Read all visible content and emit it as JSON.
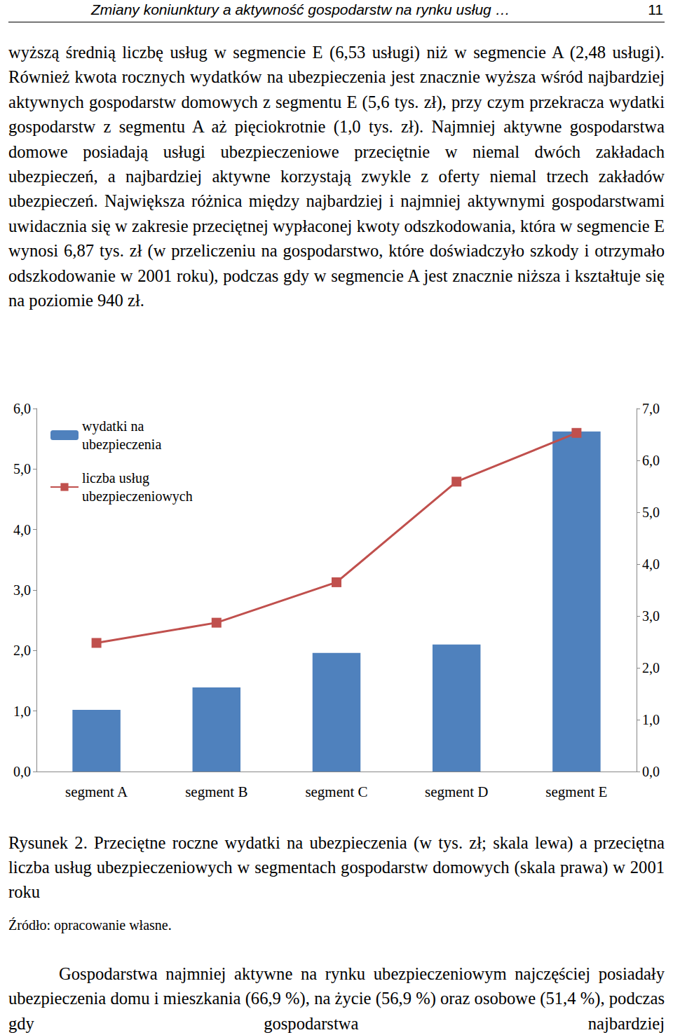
{
  "header": {
    "title": "Zmiany koniunktury a aktywność gospodarstw na rynku usług …",
    "page": "11"
  },
  "text_before": "wyższą średnią liczbę usług w segmencie E (6,53 usługi) niż w segmencie A (2,48 usługi). Również kwota rocznych wydatków na ubezpieczenia jest znacznie wyższa wśród najbardziej aktywnych gospodarstw domowych z segmentu E (5,6 tys. zł), przy czym przekracza wydatki gospodarstw z segmentu A aż pięciokrotnie (1,0 tys. zł). Najmniej aktywne gospodarstwa domowe posiadają usługi ubezpieczeniowe przeciętnie w niemal dwóch zakładach ubezpieczeń, a najbardziej aktywne korzystają zwykle z oferty niemal trzech zakładów ubezpieczeń. Największa różnica między najbardziej i najmniej aktywnymi gospodarstwami uwidacznia się w zakresie przeciętnej wypłaconej kwoty odszkodowania, która w segmencie E wynosi 6,87 tys. zł (w przeliczeniu na gospodarstwo, które doświadczyło szkody i otrzymało odszkodowanie w 2001 roku), podczas gdy w segmencie A jest znacznie niższa i kształtuje się na poziomie 940 zł.",
  "chart_data": {
    "type": "bar",
    "categories": [
      "segment A",
      "segment B",
      "segment C",
      "segment D",
      "segment E"
    ],
    "series": [
      {
        "name": "wydatki na\nubezpieczenia",
        "type": "bar",
        "color": "#4f81bd",
        "values": [
          1.02,
          1.39,
          1.96,
          2.1,
          5.62
        ]
      },
      {
        "name": "liczba usług\nubezpieczeniowych",
        "type": "line",
        "axis": "y2",
        "color": "#c0504d",
        "marker": "square",
        "line_style": "solid",
        "values": [
          2.48,
          2.87,
          3.65,
          5.59,
          6.53
        ]
      }
    ],
    "ylim": [
      0,
      6
    ],
    "yticks": [
      {
        "value": 0,
        "label": "0,0"
      },
      {
        "value": 1,
        "label": "1,0"
      },
      {
        "value": 2,
        "label": "2,0"
      },
      {
        "value": 3,
        "label": "3,0"
      },
      {
        "value": 4,
        "label": "4,0"
      },
      {
        "value": 5,
        "label": "5,0"
      },
      {
        "value": 6,
        "label": "6,0"
      }
    ],
    "y2lim": [
      0,
      7
    ],
    "y2ticks": [
      {
        "value": 0,
        "label": "0,0"
      },
      {
        "value": 1,
        "label": "1,0"
      },
      {
        "value": 2,
        "label": "2,0"
      },
      {
        "value": 3,
        "label": "3,0"
      },
      {
        "value": 4,
        "label": "4,0"
      },
      {
        "value": 5,
        "label": "5,0"
      },
      {
        "value": 6,
        "label": "6,0"
      },
      {
        "value": 7,
        "label": "7,0"
      }
    ],
    "legend": "top-left",
    "grid": false
  },
  "caption": "Rysunek 2. Przeciętne roczne wydatki na ubezpieczenia (w tys. zł; skala lewa) a przeciętna liczba usług ubezpieczeniowych w segmentach gospodarstw domowych (skala prawa) w 2001 roku",
  "source": "Źródło: opracowanie własne.",
  "text_after": "Gospodarstwa najmniej aktywne na rynku ubezpieczeniowym najczęściej posiadały ubezpieczenia domu i mieszkania (66,9 %), na życie (56,9 %) oraz osobowe (51,4 %), podczas gdy gospodarstwa najbardziej"
}
